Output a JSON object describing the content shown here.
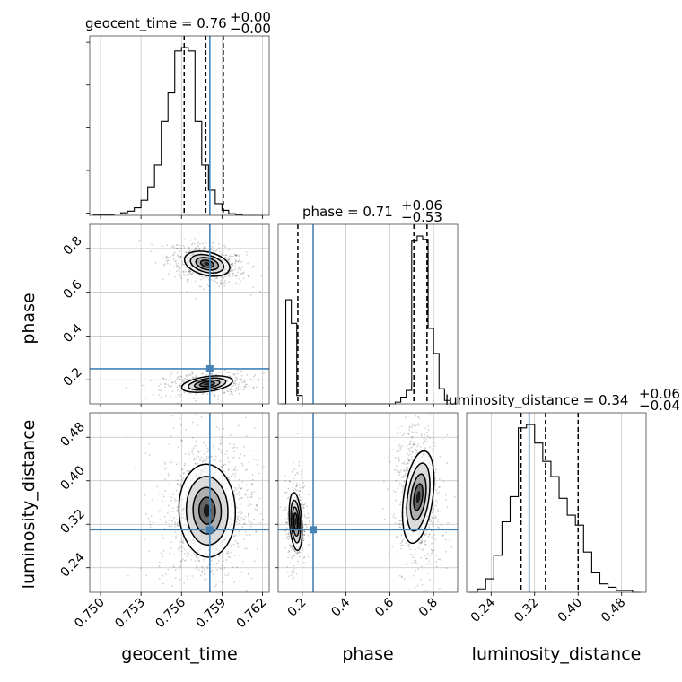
{
  "chart_data": {
    "type": "corner",
    "parameters": [
      "geocent_time",
      "phase",
      "luminosity_distance"
    ],
    "truth": {
      "geocent_time": 0.7581,
      "phase": 0.25,
      "luminosity_distance": 0.31
    },
    "colors": {
      "truth": "#4682b4",
      "hist": "#000000",
      "grid": "#c0c0c0"
    },
    "grid": true,
    "titles": [
      {
        "main": "geocent_time = 0.76",
        "sup": "+0.00",
        "sub": "−0.00"
      },
      {
        "main": "phase = 0.71",
        "sup": "+0.06",
        "sub": "−0.53"
      },
      {
        "main": "luminosity_distance = 0.34",
        "sup": "+0.06",
        "sub": "−0.04"
      }
    ],
    "axes": {
      "geocent_time": {
        "range": [
          0.7492,
          0.7625
        ],
        "ticks": [
          0.75,
          0.753,
          0.756,
          0.759,
          0.762
        ],
        "tick_labels": [
          "0.750",
          "0.753",
          "0.756",
          "0.759",
          "0.762"
        ],
        "label": "geocent_time"
      },
      "phase": {
        "range": [
          0.09,
          0.91
        ],
        "ticks": [
          0.2,
          0.4,
          0.6,
          0.8
        ],
        "tick_labels": [
          "0.2",
          "0.4",
          "0.6",
          "0.8"
        ],
        "label": "phase"
      },
      "luminosity_distance": {
        "range": [
          0.195,
          0.525
        ],
        "ticks": [
          0.24,
          0.32,
          0.4,
          0.48
        ],
        "tick_labels": [
          "0.24",
          "0.32",
          "0.40",
          "0.48"
        ],
        "label": "luminosity_distance"
      }
    },
    "histograms": {
      "geocent_time": {
        "bins": [
          0.7495,
          0.75,
          0.7505,
          0.751,
          0.7515,
          0.752,
          0.7525,
          0.753,
          0.7535,
          0.754,
          0.7545,
          0.755,
          0.7555,
          0.756,
          0.7565,
          0.757,
          0.7575,
          0.758,
          0.7585,
          0.759,
          0.7595,
          0.76,
          0.7605,
          0.761,
          0.7615,
          0.762
        ],
        "values": [
          0.005,
          0.005,
          0.005,
          0.008,
          0.015,
          0.025,
          0.045,
          0.09,
          0.17,
          0.3,
          0.56,
          0.73,
          0.98,
          1.0,
          0.98,
          0.56,
          0.3,
          0.15,
          0.07,
          0.03,
          0.01,
          0.005,
          0.0,
          0.0,
          0.0
        ],
        "quantiles": [
          0.7562,
          0.7578,
          0.7591
        ]
      },
      "phase": {
        "bins": [
          0.1,
          0.125,
          0.15,
          0.175,
          0.2,
          0.225,
          0.25,
          0.275,
          0.3,
          0.325,
          0.35,
          0.375,
          0.4,
          0.425,
          0.45,
          0.475,
          0.5,
          0.525,
          0.55,
          0.575,
          0.6,
          0.625,
          0.65,
          0.675,
          0.7,
          0.725,
          0.75,
          0.775,
          0.8,
          0.825,
          0.85,
          0.875,
          0.9
        ],
        "values": [
          0.0,
          0.62,
          0.48,
          0.05,
          0.0,
          0.0,
          0.0,
          0.0,
          0.0,
          0.0,
          0.0,
          0.0,
          0.0,
          0.0,
          0.0,
          0.0,
          0.0,
          0.0,
          0.0,
          0.0,
          0.0,
          0.01,
          0.04,
          0.08,
          0.97,
          1.0,
          0.98,
          0.45,
          0.3,
          0.09,
          0.02,
          0.0
        ],
        "quantiles": [
          0.18,
          0.71,
          0.77
        ]
      },
      "luminosity_distance": {
        "bins": [
          0.2,
          0.215,
          0.23,
          0.245,
          0.26,
          0.275,
          0.29,
          0.305,
          0.32,
          0.335,
          0.35,
          0.365,
          0.38,
          0.395,
          0.41,
          0.425,
          0.44,
          0.455,
          0.47,
          0.485,
          0.5,
          0.515
        ],
        "values": [
          0.0,
          0.02,
          0.08,
          0.22,
          0.42,
          0.57,
          0.98,
          1.0,
          0.89,
          0.78,
          0.69,
          0.56,
          0.46,
          0.4,
          0.24,
          0.12,
          0.05,
          0.03,
          0.01,
          0.01,
          0.0
        ],
        "quantiles": [
          0.295,
          0.34,
          0.4
        ]
      }
    },
    "modes": {
      "geocent_time_vs_phase": [
        {
          "cx": 0.7579,
          "cy": 0.73,
          "sx": 0.0009,
          "sy": 0.028,
          "rho": -0.35,
          "w": 0.62
        },
        {
          "cx": 0.7579,
          "cy": 0.18,
          "sx": 0.001,
          "sy": 0.018,
          "rho": 0.2,
          "w": 0.38
        }
      ],
      "geocent_time_vs_luminosity_distance": [
        {
          "cx": 0.7579,
          "cy": 0.345,
          "sx": 0.0011,
          "sy": 0.045,
          "rho": 0.05,
          "w": 1.0
        }
      ],
      "phase_vs_luminosity_distance": [
        {
          "cx": 0.17,
          "cy": 0.325,
          "sx": 0.015,
          "sy": 0.028,
          "rho": 0.1,
          "w": 0.35
        },
        {
          "cx": 0.73,
          "cy": 0.37,
          "sx": 0.035,
          "sy": 0.045,
          "rho": -0.2,
          "w": 0.65
        }
      ]
    }
  }
}
